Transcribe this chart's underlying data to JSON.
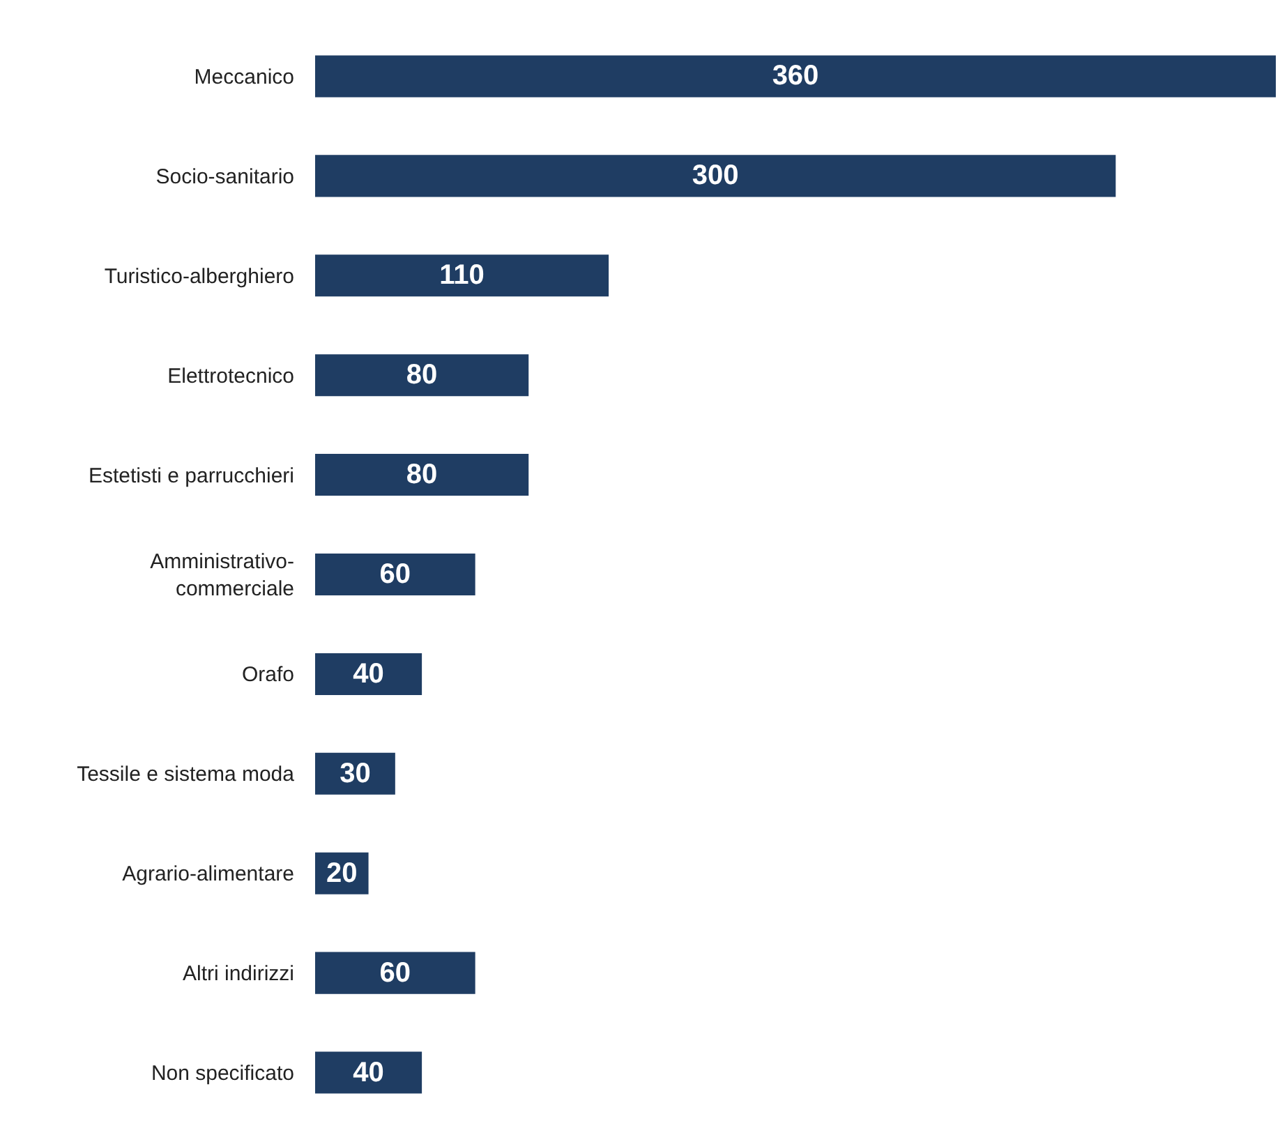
{
  "chart_data": {
    "type": "bar",
    "orientation": "horizontal",
    "categories": [
      "Meccanico",
      "Socio-sanitario",
      "Turistico-alberghiero",
      "Elettrotecnico",
      "Estetisti e parrucchieri",
      "Amministrativo-\ncommerciale",
      "Orafo",
      "Tessile e sistema moda",
      "Agrario-alimentare",
      "Altri indirizzi",
      "Non specificato"
    ],
    "values": [
      360,
      300,
      110,
      80,
      80,
      60,
      40,
      30,
      20,
      60,
      40
    ],
    "color": "#1f3d63",
    "data_labels": true,
    "xlim": [
      0,
      360
    ],
    "tick_labels": "y"
  }
}
